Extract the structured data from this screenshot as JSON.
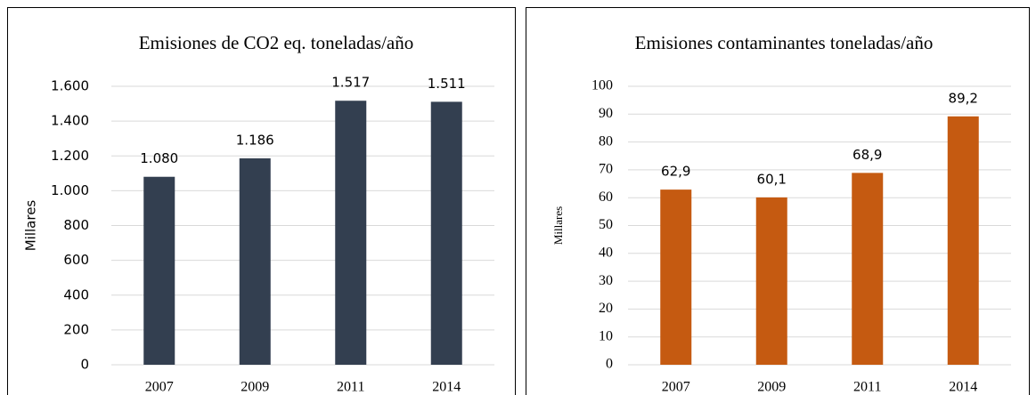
{
  "chart_data": [
    {
      "type": "bar",
      "title": "Emisiones de CO2 eq. toneladas/año",
      "y_label": "Millares",
      "categories": [
        "2007",
        "2009",
        "2011",
        "2014"
      ],
      "values": [
        1080,
        1186,
        1517,
        1511
      ],
      "value_labels": [
        "1.080",
        "1.186",
        "1.517",
        "1.511"
      ],
      "color": "#333f50",
      "ylim": [
        0,
        1600
      ],
      "yticks": [
        0,
        200,
        400,
        600,
        800,
        {
          "value": 1000,
          "label": "1.000"
        },
        {
          "value": 1200,
          "label": "1.200"
        },
        {
          "value": 1400,
          "label": "1.400"
        },
        {
          "value": 1600,
          "label": "1.600"
        }
      ],
      "grid": true
    },
    {
      "type": "bar",
      "title": "Emisiones contaminantes toneladas/año",
      "y_label": "Millares",
      "categories": [
        "2007",
        "2009",
        "2011",
        "2014"
      ],
      "values": [
        62.9,
        60.1,
        68.9,
        89.2
      ],
      "value_labels": [
        "62,9",
        "60,1",
        "68,9",
        "89,2"
      ],
      "color": "#c55a11",
      "ylim": [
        0,
        100
      ],
      "yticks": [
        0,
        10,
        20,
        30,
        40,
        50,
        60,
        70,
        80,
        90,
        100
      ],
      "grid": true
    }
  ]
}
